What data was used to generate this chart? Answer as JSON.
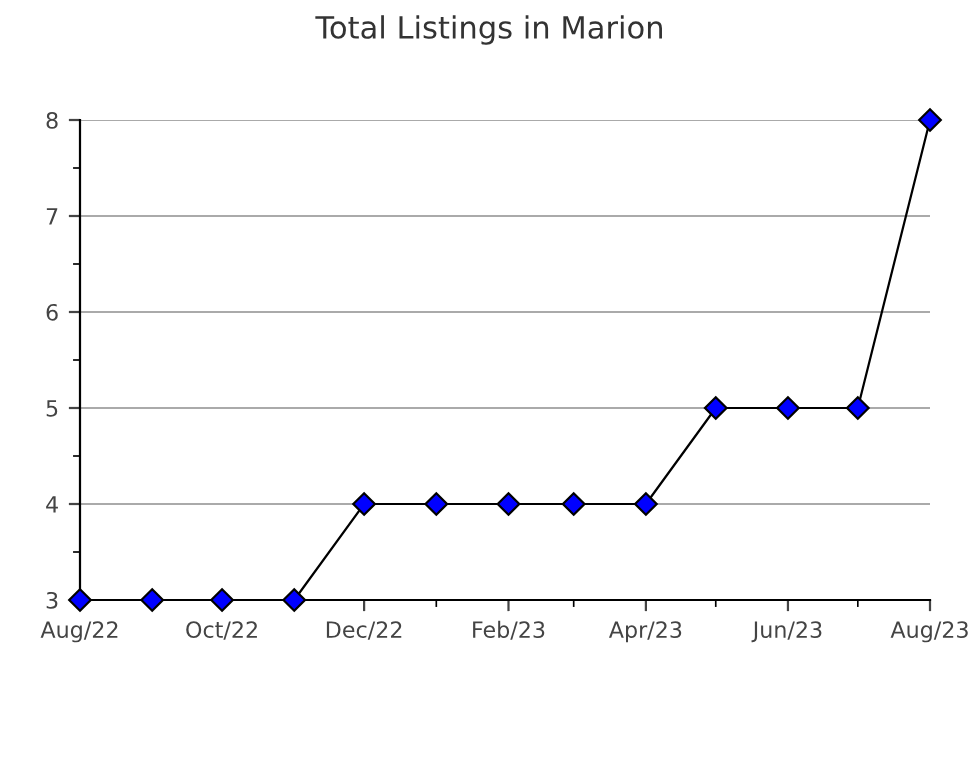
{
  "chart_data": {
    "type": "line",
    "title": "Total Listings in Marion",
    "x": [
      "2022-08",
      "2022-09",
      "2022-10",
      "2022-11",
      "2022-12",
      "2023-01",
      "2023-02",
      "2023-03",
      "2023-04",
      "2023-05",
      "2023-06",
      "2023-07",
      "2023-08"
    ],
    "series": [
      {
        "color": "#0000ff",
        "values": [
          3,
          3,
          3,
          3,
          4,
          4,
          4,
          4,
          4,
          5,
          5,
          5,
          8
        ]
      }
    ],
    "xlim": [
      "2022-08",
      "2023-08"
    ],
    "xticks": [
      {
        "value": "2022-08",
        "label": "Aug/22"
      },
      {
        "value": "2022-09",
        "label": null
      },
      {
        "value": "2022-10",
        "label": "Oct/22"
      },
      {
        "value": "2022-11",
        "label": null
      },
      {
        "value": "2022-12",
        "label": "Dec/22"
      },
      {
        "value": "2023-01",
        "label": null
      },
      {
        "value": "2023-02",
        "label": "Feb/23"
      },
      {
        "value": "2023-03",
        "label": null
      },
      {
        "value": "2023-04",
        "label": "Apr/23"
      },
      {
        "value": "2023-05",
        "label": null
      },
      {
        "value": "2023-06",
        "label": "Jun/23"
      },
      {
        "value": "2023-07",
        "label": null
      },
      {
        "value": "2023-08",
        "label": "Aug/23"
      }
    ],
    "ylim": [
      3,
      8
    ],
    "yticks": [
      3,
      {
        "value": 3.5,
        "label": null
      },
      4,
      {
        "value": 4.5,
        "label": null
      },
      5,
      {
        "value": 5.5,
        "label": null
      },
      6,
      {
        "value": 6.5,
        "label": null
      },
      7,
      {
        "value": 7.5,
        "label": null
      },
      8
    ],
    "grid": "y",
    "marker": "diamond",
    "line_style": "solid"
  }
}
